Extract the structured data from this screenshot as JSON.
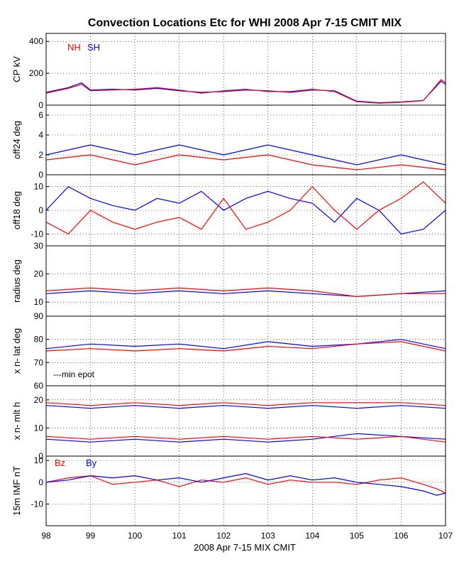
{
  "chart_data": {
    "type": "line",
    "title": "Convection Locations Etc for WHI 2008 Apr 7-15 CMIT MIX",
    "xlabel": "2008 Apr 7-15 MIX CMIT",
    "xlim": [
      98,
      107
    ],
    "xticks": [
      "98",
      "99",
      "100",
      "101",
      "102",
      "103",
      "104",
      "105",
      "106",
      "107"
    ],
    "grid": true,
    "colors": {
      "red": "#ff0000",
      "blue": "#0000ff"
    },
    "panels": [
      {
        "ylabel": "CP kV",
        "ylim": [
          0,
          450
        ],
        "yticks": [
          "0",
          "200",
          "400"
        ],
        "legend": {
          "placement": "top-left",
          "entries": [
            {
              "name": "NH",
              "color": "#ff0000"
            },
            {
              "name": "SH",
              "color": "#0000ff"
            }
          ]
        },
        "series": [
          {
            "color": "blue",
            "x": [
              98,
              98.5,
              98.8,
              99,
              99.5,
              100,
              100.5,
              101,
              101.5,
              102,
              102.5,
              103,
              103.5,
              104,
              104.5,
              105,
              105.5,
              106,
              106.5,
              106.9,
              107
            ],
            "y": [
              80,
              110,
              140,
              95,
              100,
              95,
              105,
              90,
              80,
              85,
              95,
              90,
              80,
              95,
              90,
              25,
              15,
              20,
              30,
              150,
              130
            ]
          },
          {
            "color": "red",
            "x": [
              98,
              98.5,
              98.8,
              99,
              99.5,
              100,
              100.5,
              101,
              101.5,
              102,
              102.5,
              103,
              103.5,
              104,
              104.5,
              105,
              105.5,
              106,
              106.5,
              106.9,
              107
            ],
            "y": [
              75,
              105,
              130,
              90,
              95,
              100,
              110,
              95,
              75,
              90,
              100,
              85,
              85,
              100,
              85,
              22,
              12,
              18,
              28,
              160,
              140
            ]
          }
        ]
      },
      {
        "ylabel": "off24 deg",
        "ylim": [
          0,
          7
        ],
        "yticks": [
          "0",
          "2",
          "4",
          "6"
        ],
        "series": [
          {
            "color": "blue",
            "x": [
              98,
              99,
              100,
              101,
              102,
              103,
              104,
              105,
              106,
              107
            ],
            "y": [
              2,
              3,
              2,
              3,
              2,
              3,
              2,
              1,
              2,
              1
            ]
          },
          {
            "color": "red",
            "x": [
              98,
              99,
              100,
              101,
              102,
              103,
              104,
              105,
              106,
              107
            ],
            "y": [
              1.5,
              2,
              1,
              2,
              1.5,
              2,
              1,
              0.5,
              1,
              0.5
            ]
          }
        ]
      },
      {
        "ylabel": "off18 deg",
        "ylim": [
          -15,
          15
        ],
        "yticks": [
          "-10",
          "0",
          "10"
        ],
        "series": [
          {
            "color": "blue",
            "x": [
              98,
              98.5,
              99,
              99.5,
              100,
              100.5,
              101,
              101.5,
              102,
              102.5,
              103,
              103.5,
              104,
              104.5,
              105,
              105.5,
              106,
              106.5,
              107
            ],
            "y": [
              0,
              10,
              5,
              2,
              0,
              5,
              3,
              8,
              0,
              5,
              8,
              5,
              3,
              -5,
              5,
              0,
              -10,
              -8,
              0
            ]
          },
          {
            "color": "red",
            "x": [
              98,
              98.5,
              99,
              99.5,
              100,
              100.5,
              101,
              101.5,
              102,
              102.5,
              103,
              103.5,
              104,
              104.5,
              105,
              105.5,
              106,
              106.5,
              107
            ],
            "y": [
              -5,
              -10,
              0,
              -5,
              -8,
              -5,
              -3,
              -8,
              5,
              -8,
              -5,
              0,
              10,
              0,
              -8,
              0,
              5,
              12,
              3
            ]
          }
        ]
      },
      {
        "ylabel": "radius deg",
        "ylim": [
          5,
          30
        ],
        "yticks": [
          "10",
          "20",
          "30"
        ],
        "series": [
          {
            "color": "blue",
            "x": [
              98,
              99,
              100,
              101,
              102,
              103,
              104,
              105,
              106,
              107
            ],
            "y": [
              13,
              14,
              13,
              14,
              13,
              14,
              13,
              12,
              13,
              14
            ]
          },
          {
            "color": "red",
            "x": [
              98,
              99,
              100,
              101,
              102,
              103,
              104,
              105,
              106,
              107
            ],
            "y": [
              14,
              15,
              14,
              15,
              14,
              15,
              14,
              12,
              13,
              13
            ]
          }
        ]
      },
      {
        "ylabel": "x n-  lat deg",
        "ylim": [
          60,
          90
        ],
        "yticks": [
          "60",
          "70",
          "80",
          "90"
        ],
        "annotation": "---min epot",
        "series": [
          {
            "color": "blue",
            "x": [
              98,
              99,
              100,
              101,
              102,
              103,
              104,
              105,
              106,
              107
            ],
            "y": [
              76,
              78,
              77,
              78,
              76,
              79,
              77,
              78,
              80,
              76
            ]
          },
          {
            "color": "red",
            "x": [
              98,
              99,
              100,
              101,
              102,
              103,
              104,
              105,
              106,
              107
            ],
            "y": [
              75,
              76,
              75,
              76,
              75,
              77,
              76,
              78,
              79,
              75
            ]
          }
        ]
      },
      {
        "ylabel": "x n-  mlt h",
        "ylim": [
          0,
          25
        ],
        "yticks": [
          "0",
          "10",
          "20"
        ],
        "series": [
          {
            "color": "blue",
            "x": [
              98,
              99,
              100,
              101,
              102,
              103,
              104,
              105,
              106,
              107
            ],
            "y": [
              18,
              17,
              18,
              17,
              18,
              17,
              18,
              17,
              18,
              17
            ]
          },
          {
            "color": "blue",
            "x": [
              98,
              99,
              100,
              101,
              102,
              103,
              104,
              105,
              106,
              107
            ],
            "y": [
              6,
              5,
              6,
              5,
              6,
              5,
              6,
              8,
              7,
              6
            ]
          },
          {
            "color": "red",
            "x": [
              98,
              99,
              100,
              101,
              102,
              103,
              104,
              105,
              106,
              107
            ],
            "y": [
              19,
              18,
              19,
              18,
              19,
              18,
              19,
              19,
              19,
              18
            ]
          },
          {
            "color": "red",
            "x": [
              98,
              99,
              100,
              101,
              102,
              103,
              104,
              105,
              106,
              107
            ],
            "y": [
              7,
              6,
              7,
              6,
              7,
              6,
              7,
              6,
              7,
              5
            ]
          }
        ]
      },
      {
        "ylabel": "15m IMF nT",
        "ylim": [
          -20,
          12
        ],
        "yticks": [
          "-10",
          "0",
          "10"
        ],
        "legend": {
          "placement": "top-left",
          "entries": [
            {
              "name": "Bz",
              "color": "#ff0000"
            },
            {
              "name": "By",
              "color": "#0000ff"
            }
          ]
        },
        "series": [
          {
            "color": "red",
            "x": [
              98,
              98.5,
              99,
              99.5,
              100,
              100.5,
              101,
              101.5,
              102,
              102.5,
              103,
              103.5,
              104,
              104.5,
              105,
              105.5,
              106,
              106.5,
              106.8,
              107
            ],
            "y": [
              0,
              2,
              3,
              -1,
              0,
              1,
              -2,
              1,
              0,
              2,
              -1,
              1,
              0,
              0,
              -1,
              1,
              2,
              -1,
              -3,
              -5
            ]
          },
          {
            "color": "blue",
            "x": [
              98,
              98.5,
              99,
              99.5,
              100,
              100.5,
              101,
              101.5,
              102,
              102.5,
              103,
              103.5,
              104,
              104.5,
              105,
              105.5,
              106,
              106.5,
              106.8,
              107
            ],
            "y": [
              0,
              1,
              3,
              2,
              3,
              1,
              2,
              0,
              2,
              4,
              1,
              3,
              1,
              2,
              0,
              -1,
              -2,
              -4,
              -6,
              -5
            ]
          }
        ]
      }
    ]
  }
}
